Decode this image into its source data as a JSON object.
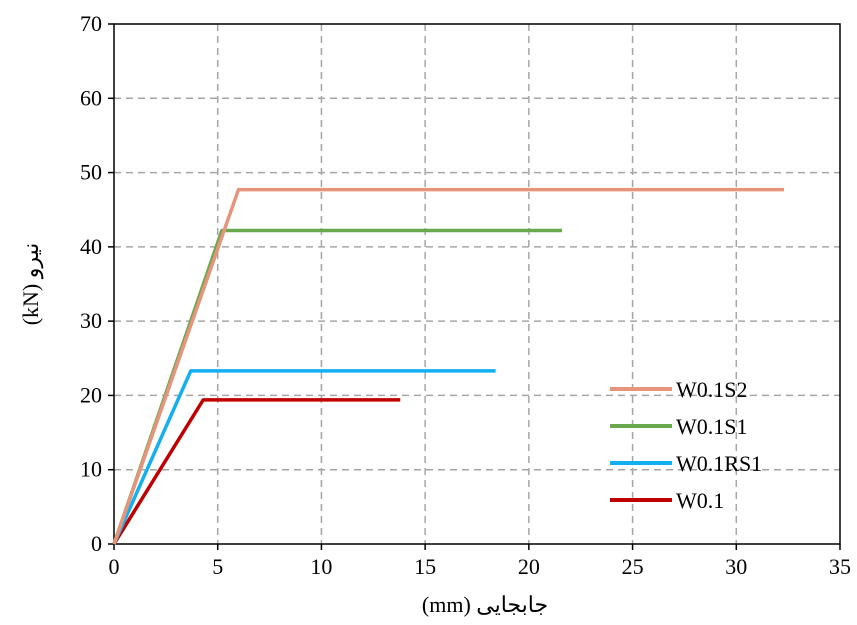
{
  "chart_data": {
    "type": "line",
    "title": "",
    "xlabel": "جابجایی (mm)",
    "ylabel": "(kN) نیرو",
    "xlim": [
      0,
      35
    ],
    "ylim": [
      0,
      70
    ],
    "xticks": [
      0,
      5,
      10,
      15,
      20,
      25,
      30,
      35
    ],
    "yticks": [
      0,
      10,
      20,
      30,
      40,
      50,
      60,
      70
    ],
    "grid": true,
    "legend_position": "lower-right",
    "series": [
      {
        "name": "W0.1S2",
        "color": "#E6947B",
        "x": [
          0,
          6,
          32.3
        ],
        "y": [
          0,
          47.7,
          47.7
        ]
      },
      {
        "name": "W0.1S1",
        "color": "#6AA84F",
        "x": [
          0,
          5.2,
          21.6
        ],
        "y": [
          0,
          42.2,
          42.2
        ]
      },
      {
        "name": "W0.1RS1",
        "color": "#13B0F0",
        "x": [
          0,
          3.7,
          18.4
        ],
        "y": [
          0,
          23.3,
          23.3
        ]
      },
      {
        "name": "W0.1",
        "color": "#C00000",
        "x": [
          0,
          4.3,
          13.8
        ],
        "y": [
          0,
          19.4,
          19.4
        ]
      }
    ]
  }
}
